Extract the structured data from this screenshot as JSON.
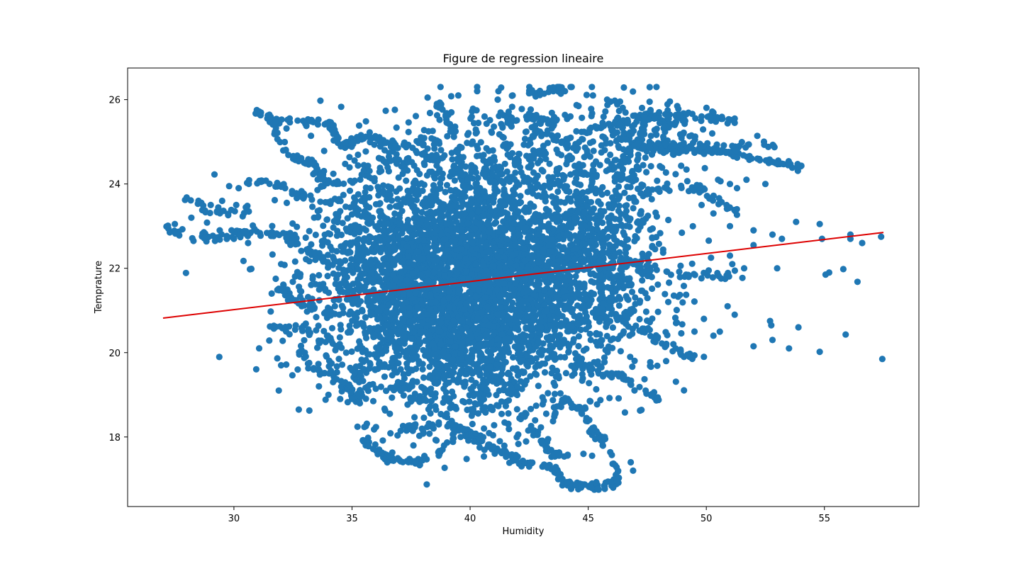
{
  "chart_data": {
    "type": "scatter",
    "title": "Figure de regression lineaire",
    "xlabel": "Humidity",
    "ylabel": "Temprature",
    "xlim": [
      25.5,
      59.0
    ],
    "ylim": [
      16.35,
      26.75
    ],
    "xticks": [
      30,
      35,
      40,
      45,
      50,
      55
    ],
    "yticks": [
      18,
      20,
      22,
      24,
      26
    ],
    "grid": false,
    "legend": "none",
    "colors": {
      "points": "#1f77b4",
      "regression_line": "#dd0000",
      "axes": "#000000",
      "background": "#ffffff"
    },
    "regression_line": {
      "x": [
        27.0,
        57.5
      ],
      "y": [
        20.82,
        22.85
      ]
    },
    "point_groups": {
      "description_free_note": "",
      "clusters": [
        {
          "cx": 40.0,
          "cy": 21.7,
          "sx": 3.2,
          "sy": 1.2,
          "n": 2600
        },
        {
          "cx": 38.5,
          "cy": 20.6,
          "sx": 2.2,
          "sy": 1.0,
          "n": 700
        },
        {
          "cx": 43.0,
          "cy": 22.4,
          "sx": 2.5,
          "sy": 1.2,
          "n": 700
        },
        {
          "cx": 45.5,
          "cy": 22.2,
          "sx": 1.0,
          "sy": 1.4,
          "n": 260
        },
        {
          "cx": 36.0,
          "cy": 23.0,
          "sx": 1.3,
          "sy": 1.0,
          "n": 260
        },
        {
          "cx": 40.5,
          "cy": 19.5,
          "sx": 2.0,
          "sy": 0.8,
          "n": 300
        },
        {
          "cx": 47.5,
          "cy": 25.1,
          "sx": 1.3,
          "sy": 0.5,
          "n": 180
        },
        {
          "cx": 41.5,
          "cy": 24.6,
          "sx": 2.5,
          "sy": 0.7,
          "n": 300
        }
      ],
      "trails": [
        {
          "pts": [
            [
              31.0,
              25.7
            ],
            [
              32.5,
              25.4
            ],
            [
              34.0,
              25.5
            ],
            [
              34.5,
              24.9
            ],
            [
              35.5,
              25.1
            ],
            [
              37.0,
              24.9
            ],
            [
              39.0,
              25.1
            ]
          ],
          "n": 110
        },
        {
          "pts": [
            [
              31.5,
              25.6
            ],
            [
              32.0,
              25.0
            ],
            [
              32.5,
              24.6
            ],
            [
              33.3,
              24.5
            ],
            [
              33.8,
              24.1
            ],
            [
              34.5,
              24.0
            ]
          ],
          "n": 60
        },
        {
          "pts": [
            [
              30.5,
              24.0
            ],
            [
              31.5,
              24.1
            ],
            [
              32.5,
              23.8
            ],
            [
              33.5,
              23.6
            ],
            [
              34.5,
              23.6
            ]
          ],
          "n": 40
        },
        {
          "pts": [
            [
              27.0,
              23.0
            ],
            [
              28.0,
              22.8
            ],
            [
              29.0,
              22.7
            ],
            [
              30.0,
              22.8
            ],
            [
              31.0,
              22.9
            ],
            [
              32.0,
              22.8
            ],
            [
              33.5,
              22.7
            ]
          ],
          "n": 70
        },
        {
          "pts": [
            [
              27.8,
              23.7
            ],
            [
              28.8,
              23.4
            ],
            [
              29.5,
              23.3
            ],
            [
              30.5,
              23.4
            ]
          ],
          "n": 24
        },
        {
          "pts": [
            [
              31.5,
              22.9
            ],
            [
              32.5,
              22.6
            ],
            [
              33.5,
              22.3
            ],
            [
              34.5,
              22.2
            ]
          ],
          "n": 30
        },
        {
          "pts": [
            [
              31.8,
              21.5
            ],
            [
              32.5,
              21.3
            ],
            [
              33.5,
              21.0
            ],
            [
              34.5,
              20.9
            ]
          ],
          "n": 30
        },
        {
          "pts": [
            [
              31.5,
              20.6
            ],
            [
              32.5,
              20.6
            ],
            [
              33.5,
              20.4
            ],
            [
              34.5,
              20.1
            ]
          ],
          "n": 28
        },
        {
          "pts": [
            [
              32.8,
              20.0
            ],
            [
              33.5,
              19.6
            ],
            [
              34.5,
              19.4
            ],
            [
              35.0,
              19.0
            ],
            [
              35.6,
              18.9
            ]
          ],
          "n": 40
        },
        {
          "pts": [
            [
              35.5,
              17.9
            ],
            [
              36.5,
              17.5
            ],
            [
              37.5,
              17.4
            ],
            [
              38.5,
              17.5
            ],
            [
              39.5,
              18.2
            ],
            [
              40.5,
              18.0
            ],
            [
              42.0,
              17.4
            ],
            [
              43.5,
              17.3
            ],
            [
              44.0,
              16.9
            ],
            [
              45.0,
              16.8
            ],
            [
              45.8,
              16.9
            ]
          ],
          "n": 160
        },
        {
          "pts": [
            [
              37.0,
              18.2
            ],
            [
              38.0,
              18.2
            ],
            [
              39.0,
              18.3
            ],
            [
              40.0,
              17.9
            ],
            [
              41.0,
              17.7
            ],
            [
              42.0,
              17.5
            ]
          ],
          "n": 60
        },
        {
          "pts": [
            [
              40.0,
              18.5
            ],
            [
              41.5,
              18.8
            ],
            [
              42.5,
              18.3
            ],
            [
              43.0,
              17.9
            ],
            [
              43.5,
              17.6
            ],
            [
              44.0,
              17.6
            ]
          ],
          "n": 50
        },
        {
          "pts": [
            [
              43.5,
              18.5
            ],
            [
              44.0,
              18.9
            ],
            [
              44.8,
              18.6
            ],
            [
              45.0,
              18.3
            ],
            [
              45.5,
              18.0
            ],
            [
              46.0,
              17.6
            ],
            [
              46.3,
              17.1
            ],
            [
              46.0,
              16.8
            ],
            [
              45.2,
              16.8
            ]
          ],
          "n": 80
        },
        {
          "pts": [
            [
              44.5,
              19.8
            ],
            [
              45.5,
              19.5
            ],
            [
              46.5,
              19.4
            ],
            [
              47.5,
              19.1
            ],
            [
              48.0,
              18.9
            ]
          ],
          "n": 40
        },
        {
          "pts": [
            [
              46.0,
              21.0
            ],
            [
              47.0,
              20.6
            ],
            [
              48.0,
              20.3
            ],
            [
              49.0,
              20.0
            ],
            [
              49.5,
              19.9
            ]
          ],
          "n": 40
        },
        {
          "pts": [
            [
              46.5,
              22.2
            ],
            [
              47.5,
              22.0
            ],
            [
              48.5,
              21.9
            ],
            [
              49.5,
              21.8
            ],
            [
              50.5,
              21.8
            ],
            [
              51.5,
              21.9
            ]
          ],
          "n": 40
        },
        {
          "pts": [
            [
              47.0,
              24.9
            ],
            [
              48.5,
              24.8
            ],
            [
              50.0,
              24.8
            ],
            [
              51.5,
              24.7
            ],
            [
              53.0,
              24.5
            ],
            [
              54.0,
              24.4
            ]
          ],
          "n": 110
        },
        {
          "pts": [
            [
              48.0,
              24.9
            ],
            [
              49.5,
              24.9
            ],
            [
              51.0,
              24.9
            ],
            [
              52.0,
              24.9
            ],
            [
              53.0,
              24.9
            ]
          ],
          "n": 40
        },
        {
          "pts": [
            [
              47.0,
              25.6
            ],
            [
              48.5,
              25.6
            ],
            [
              50.0,
              25.6
            ],
            [
              51.0,
              25.5
            ]
          ],
          "n": 40
        },
        {
          "pts": [
            [
              46.5,
              23.5
            ],
            [
              47.5,
              23.8
            ],
            [
              48.5,
              24.0
            ],
            [
              49.5,
              23.9
            ],
            [
              50.5,
              23.6
            ],
            [
              51.5,
              23.2
            ]
          ],
          "n": 50
        },
        {
          "pts": [
            [
              46.0,
              23.9
            ],
            [
              46.5,
              24.5
            ],
            [
              47.0,
              25.0
            ],
            [
              47.5,
              25.6
            ]
          ],
          "n": 30
        },
        {
          "pts": [
            [
              38.5,
              26.0
            ],
            [
              39.0,
              25.7
            ],
            [
              39.2,
              25.2
            ],
            [
              39.5,
              24.5
            ],
            [
              39.8,
              24.0
            ]
          ],
          "n": 40
        },
        {
          "pts": [
            [
              42.5,
              26.2
            ],
            [
              43.0,
              26.1
            ],
            [
              43.5,
              26.3
            ],
            [
              44.0,
              26.2
            ]
          ],
          "n": 20
        },
        {
          "pts": [
            [
              41.5,
              25.5
            ],
            [
              42.5,
              25.6
            ],
            [
              43.5,
              25.5
            ],
            [
              44.5,
              25.6
            ]
          ],
          "n": 30
        },
        {
          "pts": [
            [
              42.5,
              25.3
            ],
            [
              43.5,
              25.1
            ],
            [
              44.0,
              24.9
            ],
            [
              44.5,
              24.4
            ],
            [
              45.0,
              24.2
            ]
          ],
          "n": 30
        },
        {
          "pts": [
            [
              44.8,
              25.2
            ],
            [
              45.5,
              25.4
            ],
            [
              46.0,
              25.5
            ],
            [
              46.5,
              25.4
            ],
            [
              47.0,
              25.5
            ]
          ],
          "n": 30
        },
        {
          "pts": [
            [
              37.5,
              23.5
            ],
            [
              38.5,
              23.0
            ],
            [
              39.0,
              22.7
            ],
            [
              39.6,
              22.6
            ]
          ],
          "n": 25
        },
        {
          "pts": [
            [
              36.0,
              24.6
            ],
            [
              37.0,
              24.5
            ],
            [
              38.0,
              24.6
            ],
            [
              39.0,
              24.7
            ]
          ],
          "n": 25
        }
      ],
      "sparse": [
        [
          27.5,
          23.05
        ],
        [
          28.2,
          23.2
        ],
        [
          28.5,
          23.6
        ],
        [
          28.0,
          23.68
        ],
        [
          29.5,
          23.6
        ],
        [
          29.8,
          23.95
        ],
        [
          30.2,
          23.9
        ],
        [
          30.1,
          23.5
        ],
        [
          29.4,
          22.9
        ],
        [
          29.9,
          22.9
        ],
        [
          30.6,
          22.6
        ],
        [
          30.0,
          22.7
        ],
        [
          29.2,
          22.65
        ],
        [
          50.5,
          24.1
        ],
        [
          51.0,
          24.0
        ],
        [
          51.7,
          24.1
        ],
        [
          52.5,
          24.0
        ],
        [
          51.3,
          23.9
        ],
        [
          49.8,
          23.5
        ],
        [
          50.3,
          23.3
        ],
        [
          51.0,
          23.0
        ],
        [
          52.0,
          22.9
        ],
        [
          52.8,
          22.8
        ],
        [
          53.2,
          22.7
        ],
        [
          53.8,
          23.1
        ],
        [
          54.8,
          23.05
        ],
        [
          56.1,
          22.8
        ],
        [
          56.1,
          22.7
        ],
        [
          57.4,
          22.75
        ],
        [
          54.9,
          22.7
        ],
        [
          56.6,
          22.6
        ],
        [
          52.0,
          22.55
        ],
        [
          51.0,
          22.3
        ],
        [
          50.2,
          22.25
        ],
        [
          51.6,
          22.0
        ],
        [
          53.0,
          22.0
        ],
        [
          55.2,
          21.9
        ],
        [
          55.05,
          21.85
        ],
        [
          55.8,
          21.98
        ],
        [
          56.4,
          21.68
        ],
        [
          51.1,
          22.1
        ],
        [
          50.1,
          21.95
        ],
        [
          50.8,
          21.75
        ],
        [
          50.9,
          21.1
        ],
        [
          51.2,
          20.9
        ],
        [
          52.7,
          20.75
        ],
        [
          52.75,
          20.65
        ],
        [
          53.9,
          20.6
        ],
        [
          49.9,
          20.8
        ],
        [
          49.5,
          20.5
        ],
        [
          50.3,
          20.4
        ],
        [
          52.0,
          20.15
        ],
        [
          52.8,
          20.3
        ],
        [
          53.5,
          20.1
        ],
        [
          54.8,
          20.02
        ],
        [
          55.9,
          20.43
        ],
        [
          57.45,
          19.85
        ],
        [
          49.9,
          19.9
        ],
        [
          49.2,
          19.95
        ],
        [
          48.3,
          19.8
        ],
        [
          48.7,
          20.1
        ],
        [
          46.5,
          20.5
        ],
        [
          32.0,
          19.7
        ],
        [
          32.7,
          19.6
        ],
        [
          33.0,
          20.0
        ],
        [
          34.2,
          19.3
        ],
        [
          32.8,
          21.8
        ],
        [
          32.1,
          21.6
        ],
        [
          31.6,
          21.4
        ],
        [
          32.0,
          22.1
        ],
        [
          38.2,
          26.05
        ],
        [
          39.5,
          26.1
        ],
        [
          40.3,
          26.2
        ],
        [
          41.2,
          26.2
        ],
        [
          41.8,
          26.1
        ],
        [
          43.8,
          26.3
        ],
        [
          44.3,
          26.3
        ],
        [
          45.2,
          26.1
        ],
        [
          45.8,
          26.0
        ],
        [
          47.6,
          25.95
        ],
        [
          48.0,
          25.7
        ],
        [
          47.8,
          25.55
        ],
        [
          49.0,
          25.5
        ],
        [
          49.8,
          25.6
        ],
        [
          50.2,
          25.5
        ],
        [
          51.2,
          25.55
        ],
        [
          51.2,
          25.45
        ],
        [
          42.5,
          26.15
        ],
        [
          36.6,
          18.55
        ],
        [
          35.9,
          18.85
        ],
        [
          39.6,
          18.0
        ],
        [
          37.6,
          17.8
        ],
        [
          43.3,
          17.95
        ],
        [
          44.8,
          17.6
        ],
        [
          45.3,
          17.95
        ],
        [
          46.9,
          17.2
        ],
        [
          46.2,
          16.98
        ],
        [
          45.4,
          16.77
        ],
        [
          44.7,
          16.8
        ],
        [
          46.8,
          17.4
        ],
        [
          45.7,
          18.0
        ],
        [
          34.5,
          18.9
        ],
        [
          35.0,
          18.9
        ],
        [
          35.3,
          19.3
        ],
        [
          34.0,
          19.0
        ],
        [
          33.6,
          19.2
        ],
        [
          31.9,
          19.1
        ]
      ]
    }
  }
}
